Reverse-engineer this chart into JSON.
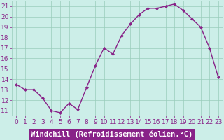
{
  "hours": [
    0,
    1,
    2,
    3,
    4,
    5,
    6,
    7,
    8,
    9,
    10,
    11,
    12,
    13,
    14,
    15,
    16,
    17,
    18,
    19,
    20,
    21,
    22,
    23
  ],
  "values": [
    13.5,
    13.0,
    13.0,
    12.2,
    11.0,
    10.8,
    11.7,
    11.1,
    13.2,
    15.3,
    17.0,
    16.4,
    18.2,
    19.3,
    20.2,
    20.8,
    20.8,
    21.0,
    21.2,
    20.6,
    19.8,
    19.0,
    17.0,
    14.2
  ],
  "line_color": "#882288",
  "marker": "D",
  "marker_size": 2,
  "line_width": 1.0,
  "bg_color": "#cceee8",
  "grid_color": "#99ccbb",
  "xlabel": "Windchill (Refroidissement éolien,°C)",
  "xlabel_color": "#ffffff",
  "xlabel_bg": "#882288",
  "ylim": [
    10.5,
    21.5
  ],
  "xlim": [
    -0.5,
    23.5
  ],
  "yticks": [
    11,
    12,
    13,
    14,
    15,
    16,
    17,
    18,
    19,
    20,
    21
  ],
  "xticks": [
    0,
    1,
    2,
    3,
    4,
    5,
    6,
    7,
    8,
    9,
    10,
    11,
    12,
    13,
    14,
    15,
    16,
    17,
    18,
    19,
    20,
    21,
    22,
    23
  ],
  "tick_fontsize": 6.5,
  "xlabel_fontsize": 7.5
}
